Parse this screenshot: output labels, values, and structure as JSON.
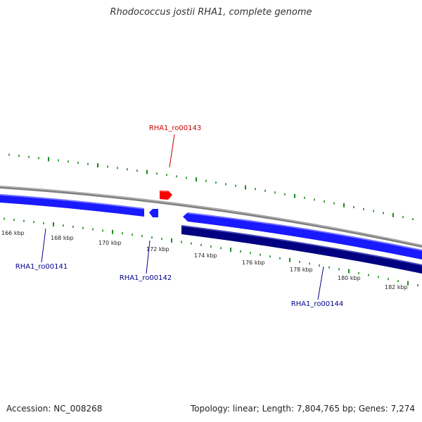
{
  "title": "Rhodococcus jostii RHA1, complete genome",
  "footer": {
    "accession": "Accession: NC_008268",
    "summary": "Topology: linear; Length: 7,804,765 bp; Genes: 7,274"
  },
  "colors": {
    "backbone": "#808080",
    "forward_gene": "#1a1aff",
    "reverse_gene": "#000080",
    "highlight_gene": "#ff0000",
    "ticks": "#1a8a1a",
    "label_blue": "#00008b",
    "label_red": "#cc0000"
  },
  "ruler": {
    "labels": [
      {
        "text": "166 kbp",
        "kb": 166
      },
      {
        "text": "168 kbp",
        "kb": 168
      },
      {
        "text": "170 kbp",
        "kb": 170
      },
      {
        "text": "172 kbp",
        "kb": 172
      },
      {
        "text": "174 kbp",
        "kb": 174
      },
      {
        "text": "176 kbp",
        "kb": 176
      },
      {
        "text": "178 kbp",
        "kb": 178
      },
      {
        "text": "180 kbp",
        "kb": 180
      },
      {
        "text": "182 kbp",
        "kb": 182
      }
    ]
  },
  "genes": [
    {
      "id": "RHA1_ro00141",
      "label": "RHA1_ro00141",
      "strand": "+",
      "track": "forward",
      "color_key": "forward_gene"
    },
    {
      "id": "RHA1_ro00142",
      "label": "RHA1_ro00142",
      "strand": "-",
      "track": "forward",
      "color_key": "forward_gene"
    },
    {
      "id": "RHA1_ro00143",
      "label": "RHA1_ro00143",
      "strand": "+",
      "track": "upper",
      "color_key": "highlight_gene"
    },
    {
      "id": "RHA1_ro00144",
      "label": "RHA1_ro00144",
      "strand": "-",
      "track": "reverse",
      "color_key": "reverse_gene"
    }
  ]
}
